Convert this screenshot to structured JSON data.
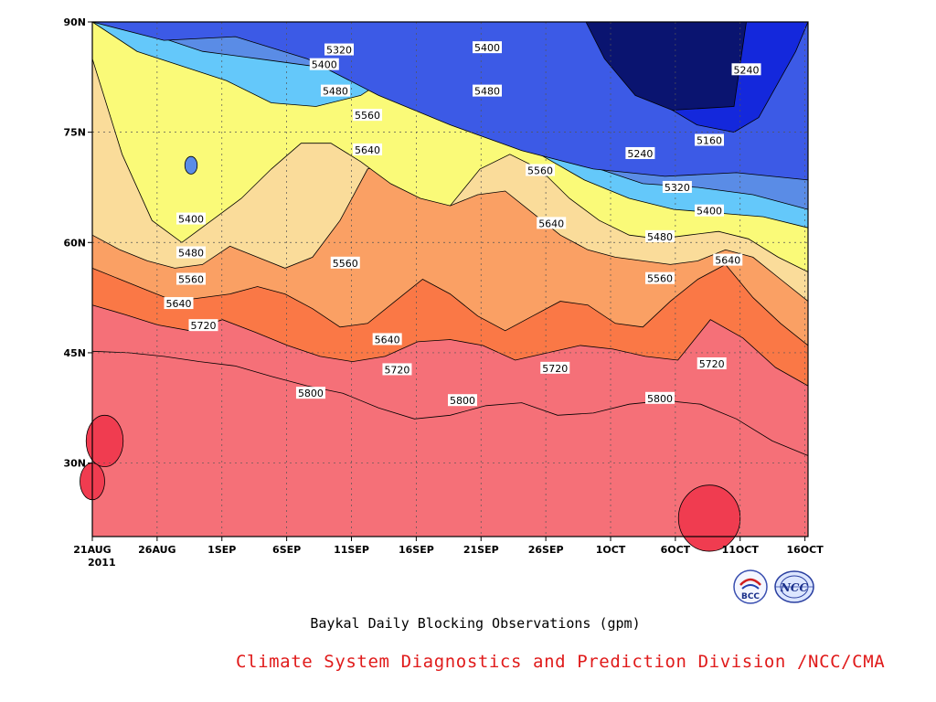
{
  "chart_data": {
    "type": "heatmap",
    "title": "Baykal Daily Blocking Observations (gpm)",
    "xlabel": "",
    "ylabel": "",
    "x_ticks": [
      "21AUG",
      "26AUG",
      "1SEP",
      "6SEP",
      "11SEP",
      "16SEP",
      "21SEP",
      "26SEP",
      "1OCT",
      "6OCT",
      "11OCT",
      "16OCT"
    ],
    "x_year_label": "2011",
    "y_ticks": [
      "30N",
      "45N",
      "60N",
      "75N",
      "90N"
    ],
    "y_tick_values": [
      30,
      45,
      60,
      75,
      90
    ],
    "ylim": [
      20,
      90
    ],
    "xlim_days": [
      0,
      58
    ],
    "grid": true,
    "contour_levels": [
      5160,
      5240,
      5320,
      5400,
      5480,
      5560,
      5640,
      5720,
      5800
    ],
    "fill_colors": [
      "#0a1470",
      "#1428dc",
      "#3c5ae6",
      "#5a8ce6",
      "#64c8fa",
      "#fafa78",
      "#fadc9a",
      "#faa064",
      "#fa7846",
      "#f57078",
      "#f03c50"
    ],
    "bands": [
      {
        "name": "",
        "top_level": 5800,
        "boundary_lat": [
          45.2,
          45.0,
          44.5,
          43.8,
          43.2,
          41.8,
          40.5,
          39.5,
          37.5,
          36.0,
          36.5,
          37.8,
          38.2,
          36.5,
          36.8,
          38.0,
          38.5,
          38.0,
          36.0,
          33.0,
          31.0
        ]
      },
      {
        "name": "",
        "top_level": 5720,
        "boundary_lat": [
          51.5,
          50.2,
          48.8,
          48.0,
          49.5,
          47.8,
          46.0,
          44.5,
          43.8,
          44.5,
          46.5,
          46.8,
          46.0,
          44.0,
          45.0,
          46.0,
          45.5,
          44.5,
          44.0,
          49.5,
          47.0,
          43.0,
          40.5
        ]
      },
      {
        "name": "",
        "top_level": 5640,
        "boundary_lat": [
          56.5,
          55.0,
          53.5,
          52.0,
          52.5,
          53.0,
          54.0,
          53.0,
          51.0,
          48.5,
          49.0,
          52.0,
          55.0,
          53.0,
          50.0,
          48.0,
          50.0,
          52.0,
          51.5,
          49.0,
          48.5,
          52.0,
          55.0,
          57.0,
          52.5,
          49.0,
          46.0
        ]
      },
      {
        "name": "",
        "top_level": 5560,
        "boundary_lat": [
          61.0,
          59.0,
          57.5,
          56.5,
          57.0,
          59.5,
          58.0,
          56.5,
          58.0,
          63.0,
          70.0,
          71.0,
          68.0,
          65.0,
          66.5,
          67.0,
          64.0,
          61.0,
          59.0,
          58.0,
          57.5,
          57.0,
          57.5,
          59.0,
          58.0,
          55.0,
          52.0
        ]
      },
      {
        "name": "",
        "top_level": 5480,
        "boundary_lat": [
          85.0,
          72.0,
          63.0,
          60.0,
          63.0,
          66.0,
          70.0,
          73.5,
          73.5,
          71.0,
          68.0,
          66.0,
          65.0,
          70.0,
          72.0,
          70.0,
          66.0,
          63.0,
          61.0,
          60.5,
          61.0,
          61.5,
          60.5,
          58.0,
          56.0
        ]
      },
      {
        "name": "",
        "top_level": 5400,
        "boundary_lat": [
          90.0,
          86.0,
          84.0,
          82.0,
          79.0,
          78.5,
          80.0,
          84.0,
          80.0,
          76.0,
          72.0,
          68.5,
          66.0,
          64.5,
          64.0,
          63.5,
          62.0
        ]
      },
      {
        "name": "",
        "top_level": 5320,
        "boundary_lat": [
          90.0,
          88.5,
          86.0,
          85.0,
          84.0,
          86.5,
          84.0,
          80.0,
          75.0,
          70.5,
          68.0,
          67.5,
          66.5,
          64.5
        ]
      },
      {
        "name": "",
        "top_level": 5240,
        "boundary_lat": [
          90.0,
          87.5,
          88.0,
          85.0,
          80.0,
          76.0,
          72.5,
          70.0,
          69.0,
          69.5,
          68.5
        ]
      }
    ],
    "contour_labels": [
      {
        "text": "5320",
        "x": 20.0,
        "y": 86.2
      },
      {
        "text": "5400",
        "x": 18.8,
        "y": 84.2
      },
      {
        "text": "5400",
        "x": 32.0,
        "y": 86.5
      },
      {
        "text": "5480",
        "x": 19.7,
        "y": 80.6
      },
      {
        "text": "5480",
        "x": 32.0,
        "y": 80.6
      },
      {
        "text": "5560",
        "x": 22.3,
        "y": 77.3
      },
      {
        "text": "5640",
        "x": 22.3,
        "y": 72.6
      },
      {
        "text": "5560",
        "x": 36.3,
        "y": 69.8
      },
      {
        "text": "5640",
        "x": 37.2,
        "y": 62.6
      },
      {
        "text": "5240",
        "x": 44.4,
        "y": 72.1
      },
      {
        "text": "5160",
        "x": 50.0,
        "y": 73.9
      },
      {
        "text": "5320",
        "x": 47.4,
        "y": 67.5
      },
      {
        "text": "5400",
        "x": 50.0,
        "y": 64.3
      },
      {
        "text": "5240",
        "x": 53.0,
        "y": 83.5
      },
      {
        "text": "5400",
        "x": 8.0,
        "y": 63.2
      },
      {
        "text": "5480",
        "x": 8.0,
        "y": 58.6
      },
      {
        "text": "5560",
        "x": 8.0,
        "y": 55.0
      },
      {
        "text": "5640",
        "x": 7.0,
        "y": 51.7
      },
      {
        "text": "5720",
        "x": 9.0,
        "y": 48.7
      },
      {
        "text": "5560",
        "x": 20.5,
        "y": 57.2
      },
      {
        "text": "5640",
        "x": 23.9,
        "y": 46.8
      },
      {
        "text": "5720",
        "x": 24.7,
        "y": 42.7
      },
      {
        "text": "5800",
        "x": 17.7,
        "y": 39.5
      },
      {
        "text": "5800",
        "x": 30.0,
        "y": 38.5
      },
      {
        "text": "5720",
        "x": 37.5,
        "y": 42.9
      },
      {
        "text": "5480",
        "x": 46.0,
        "y": 60.8
      },
      {
        "text": "5560",
        "x": 46.0,
        "y": 55.1
      },
      {
        "text": "5640",
        "x": 51.5,
        "y": 57.6
      },
      {
        "text": "5720",
        "x": 50.2,
        "y": 43.5
      },
      {
        "text": "5800",
        "x": 46.0,
        "y": 38.8
      }
    ],
    "highs": [
      {
        "lat_center": 33.0,
        "x_center": 1.0,
        "x_radius": 1.5,
        "lat_radius": 3.5
      },
      {
        "lat_center": 27.5,
        "x_center": 0.0,
        "x_radius": 1.0,
        "lat_radius": 2.5
      },
      {
        "lat_center": 22.5,
        "x_center": 50.0,
        "x_radius": 2.5,
        "lat_radius": 4.5
      }
    ],
    "lows": [
      {
        "lat_center": 70.5,
        "x_center": 8.0,
        "x_radius": 0.5,
        "lat_radius": 1.2
      }
    ]
  },
  "caption": "Baykal Daily Blocking Observations (gpm)",
  "credit": "Climate System Diagnostics and Prediction Division /NCC/CMA",
  "logos": [
    {
      "icon": "bcc-logo-icon",
      "text": "BCC"
    },
    {
      "icon": "ncc-logo-icon",
      "text": "NCC"
    }
  ]
}
